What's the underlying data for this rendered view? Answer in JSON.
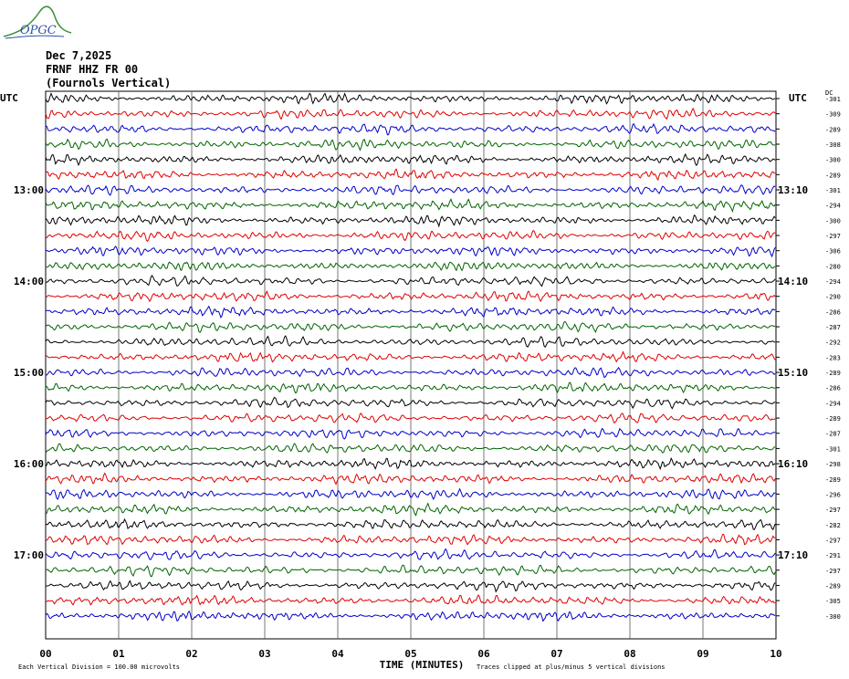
{
  "logo": {
    "text": "OPGC"
  },
  "header": {
    "date": "Dec 7,2025",
    "station": "FRNF HHZ FR 00",
    "location": "(Fournols Vertical)"
  },
  "chart_data": {
    "type": "line",
    "left_axis_label": "UTC",
    "right_axis_label": "UTC",
    "dc_label": "DC",
    "xlabel": "TIME (MINUTES)",
    "xlim": [
      0,
      10
    ],
    "x_ticks": [
      "00",
      "01",
      "02",
      "03",
      "04",
      "05",
      "06",
      "07",
      "08",
      "09",
      "10"
    ],
    "left_hour_labels": [
      {
        "row": 6,
        "label": "13:00"
      },
      {
        "row": 12,
        "label": "14:00"
      },
      {
        "row": 18,
        "label": "15:00"
      },
      {
        "row": 24,
        "label": "16:00"
      },
      {
        "row": 30,
        "label": "17:00"
      }
    ],
    "right_hour_labels": [
      {
        "row": 6,
        "label": "13:10"
      },
      {
        "row": 12,
        "label": "14:10"
      },
      {
        "row": 18,
        "label": "15:10"
      },
      {
        "row": 24,
        "label": "16:10"
      },
      {
        "row": 30,
        "label": "17:10"
      }
    ],
    "trace_colors": [
      "#000000",
      "#e00000",
      "#0000c8",
      "#006400"
    ],
    "dc_offsets": [
      "-301",
      "-309",
      "-289",
      "-308",
      "-300",
      "-289",
      "-301",
      "-294",
      "-300",
      "-297",
      "-306",
      "-280",
      "-294",
      "-290",
      "-286",
      "-287",
      "-292",
      "-283",
      "-289",
      "-286",
      "-294",
      "-289",
      "-287",
      "-301",
      "-298",
      "-289",
      "-296",
      "-297",
      "-282",
      "-297",
      "-291",
      "-297",
      "-289",
      "-305",
      "-300"
    ],
    "footer_left": "Each Vertical Division =  100.00 microvolts",
    "footer_right": "Traces clipped at plus/minus 5 vertical divisions"
  }
}
